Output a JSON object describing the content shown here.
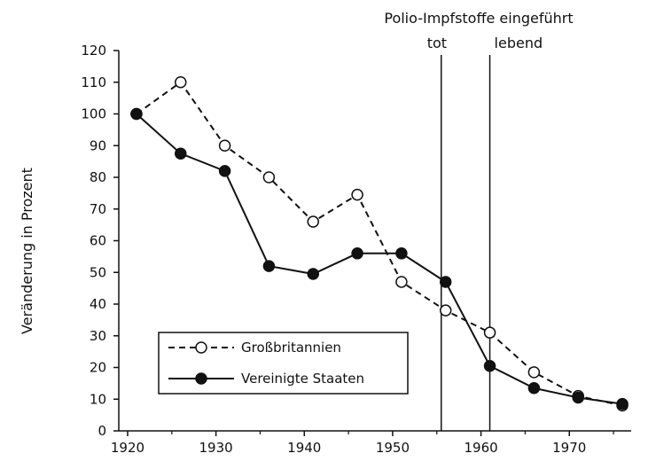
{
  "chart_data": {
    "type": "line",
    "title": "",
    "xlabel": "",
    "ylabel": "Veränderung in Prozent",
    "xlim": [
      1919,
      1977
    ],
    "ylim": [
      0,
      120
    ],
    "x_ticks": [
      1920,
      1930,
      1940,
      1950,
      1960,
      1970
    ],
    "y_ticks": [
      0,
      10,
      20,
      30,
      40,
      50,
      60,
      70,
      80,
      90,
      100,
      110,
      120
    ],
    "grid": false,
    "legend_position": "bottom-left",
    "series": [
      {
        "name": "Großbritannien",
        "style": "dashed-open-circles",
        "x": [
          1921,
          1926,
          1931,
          1936,
          1941,
          1946,
          1951,
          1956,
          1961,
          1966,
          1971,
          1976
        ],
        "y": [
          100,
          110,
          90,
          80,
          66,
          74.5,
          47,
          38,
          31,
          18.5,
          11,
          8
        ]
      },
      {
        "name": "Vereinigte Staaten",
        "style": "solid-filled-circles",
        "x": [
          1921,
          1926,
          1931,
          1936,
          1941,
          1946,
          1951,
          1956,
          1961,
          1966,
          1971,
          1976
        ],
        "y": [
          100,
          87.5,
          82,
          52,
          49.5,
          56,
          56,
          47,
          20.5,
          13.5,
          10.5,
          8.5
        ]
      }
    ],
    "annotations": {
      "title": "Polio-Impfstoffe eingeführt",
      "lines": [
        {
          "x": 1955.5,
          "label": "tot"
        },
        {
          "x": 1961,
          "label": "lebend"
        }
      ]
    }
  }
}
